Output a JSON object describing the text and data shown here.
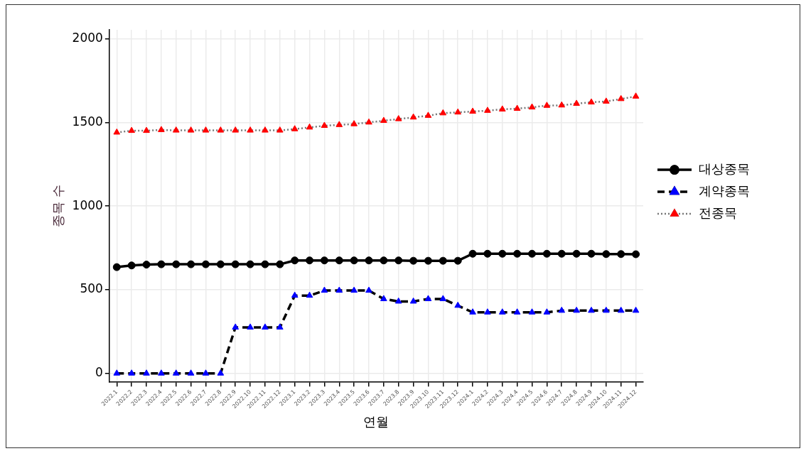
{
  "chart_data": {
    "type": "line",
    "xlabel": "연월",
    "ylabel": "종목 수",
    "categories": [
      "2022.1",
      "2022.2",
      "2022.3",
      "2022.4",
      "2022.5",
      "2022.6",
      "2022.7",
      "2022.8",
      "2022.9",
      "2022.10",
      "2022.11",
      "2022.12",
      "2023.1",
      "2023.2",
      "2023.3",
      "2023.4",
      "2023.5",
      "2023.6",
      "2023.7",
      "2023.8",
      "2023.9",
      "2023.10",
      "2023.11",
      "2023.12",
      "2024.1",
      "2024.2",
      "2024.3",
      "2024.4",
      "2024.5",
      "2024.6",
      "2024.7",
      "2024.8",
      "2024.9",
      "2024.10",
      "2024.11",
      "2024.12"
    ],
    "series": [
      {
        "name": "대상종목",
        "color": "#000000",
        "marker": "circle",
        "line_style": "solid",
        "values": [
          635,
          645,
          650,
          652,
          652,
          652,
          652,
          652,
          652,
          652,
          652,
          652,
          675,
          675,
          675,
          675,
          675,
          675,
          675,
          675,
          673,
          673,
          673,
          673,
          715,
          715,
          715,
          715,
          715,
          715,
          715,
          715,
          715,
          713,
          713,
          712
        ]
      },
      {
        "name": "계약종목",
        "color": "#0000ff",
        "marker": "triangle",
        "line_style": "dashed",
        "values": [
          0,
          0,
          0,
          0,
          0,
          0,
          0,
          0,
          275,
          275,
          275,
          275,
          465,
          465,
          495,
          495,
          495,
          495,
          445,
          430,
          430,
          445,
          445,
          405,
          365,
          365,
          365,
          365,
          365,
          365,
          375,
          375,
          375,
          375,
          375,
          375
        ]
      },
      {
        "name": "전종목",
        "color": "#ff0000",
        "marker": "triangle",
        "line_style": "dotted",
        "values": [
          1440,
          1450,
          1450,
          1455,
          1452,
          1452,
          1452,
          1452,
          1452,
          1452,
          1452,
          1452,
          1460,
          1470,
          1480,
          1485,
          1490,
          1500,
          1510,
          1520,
          1530,
          1540,
          1555,
          1560,
          1565,
          1570,
          1578,
          1582,
          1590,
          1600,
          1602,
          1612,
          1620,
          1625,
          1640,
          1655
        ]
      }
    ],
    "ylim": [
      -53,
      2053
    ],
    "yticks": [
      0,
      500,
      1000,
      1500,
      2000
    ],
    "grid": true,
    "legend": "right"
  }
}
